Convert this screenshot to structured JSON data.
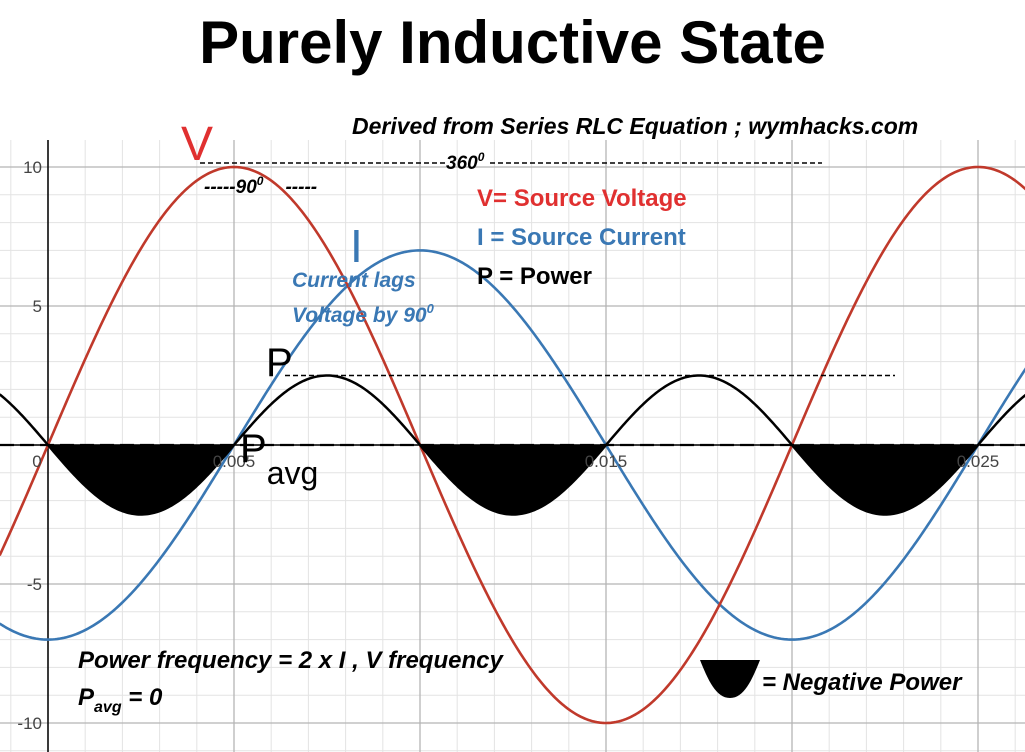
{
  "title": "Purely Inductive State",
  "subtitle": "Derived from Series RLC Equation ;  wymhacks.com",
  "curve_labels": {
    "v": "V",
    "i": "I",
    "p": "P",
    "pavg_main": "P",
    "pavg_sub": "avg"
  },
  "annotations": {
    "angle_360": "360",
    "angle_360_sup": "0",
    "angle_90": "-----90",
    "angle_90_sup": "0",
    "angle_90_tail": "-----",
    "lag_line1": "Current lags",
    "lag_line2": "Voltage by 90",
    "lag_sup": "0"
  },
  "legend": {
    "v": "V= Source Voltage",
    "i": "I = Source Current",
    "p": "P = Power",
    "negative_power": "= Negative Power"
  },
  "notes": {
    "freq": "Power frequency = 2 x I , V frequency",
    "pavg_main": "P",
    "pavg_sub": "avg",
    "pavg_value": " = 0"
  },
  "colors": {
    "voltage": "#c0392b",
    "current": "#3a78b4",
    "power": "#000000",
    "v_legend": "#e03030",
    "i_legend": "#3a78b4",
    "grid_major": "#b5b5b5",
    "grid_minor": "#e3e3e3"
  },
  "chart_data": {
    "type": "line",
    "xlim": [
      -0.0013,
      0.0267
    ],
    "ylim": [
      -11,
      11
    ],
    "x_ticks": [
      0,
      0.005,
      0.015,
      0.025
    ],
    "x_tick_labels": [
      "0",
      "0.005",
      "0.015",
      "0.025"
    ],
    "y_ticks": [
      10,
      5,
      -5,
      -10
    ],
    "y_tick_labels": [
      "10",
      "5",
      "-5",
      "-10"
    ],
    "grid": true,
    "frequency_hz": 50,
    "series": [
      {
        "name": "V= Source Voltage",
        "key": "v",
        "amplitude": 10,
        "formula": "10 sin(2*pi*50*t)"
      },
      {
        "name": "I = Source Current",
        "key": "i",
        "amplitude": 7,
        "formula": "-7 cos(2*pi*50*t)"
      },
      {
        "name": "P = Power",
        "key": "p",
        "amplitude": 2.5,
        "formula": "-2.5 sin(4*pi*50*t)"
      }
    ],
    "p_avg": 0,
    "negative_power_regions": [
      [
        0,
        0.005
      ],
      [
        0.01,
        0.015
      ],
      [
        0.02,
        0.025
      ]
    ]
  }
}
